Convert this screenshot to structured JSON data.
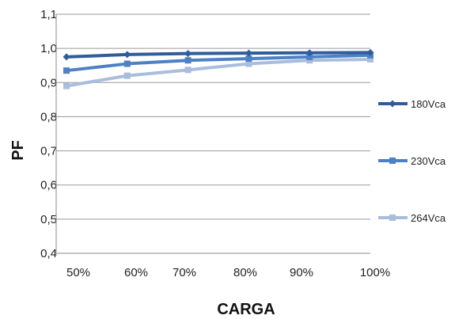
{
  "chart_data": {
    "type": "line",
    "title": "",
    "xlabel": "CARGA",
    "ylabel": "PF",
    "categories": [
      "50%",
      "60%",
      "70%",
      "80%",
      "90%",
      "100%"
    ],
    "ylim": [
      0.4,
      1.1
    ],
    "yticks": [
      0.4,
      0.5,
      0.6,
      0.7,
      0.8,
      0.9,
      1.0,
      1.1
    ],
    "ytick_labels": [
      "0,4",
      "0,5",
      "0,6",
      "0,7",
      "0,8",
      "0,9",
      "1,0",
      "1,1"
    ],
    "grid": true,
    "legend_placement": "right",
    "series": [
      {
        "name": "180Vca",
        "color": "#2F5C9A",
        "marker": "diamond",
        "values": [
          0.975,
          0.982,
          0.985,
          0.986,
          0.987,
          0.988
        ]
      },
      {
        "name": "230Vca",
        "color": "#4E80C4",
        "marker": "square",
        "values": [
          0.935,
          0.955,
          0.965,
          0.97,
          0.975,
          0.98
        ]
      },
      {
        "name": "264Vca",
        "color": "#A9BDDC",
        "marker": "square",
        "values": [
          0.89,
          0.92,
          0.937,
          0.955,
          0.965,
          0.968
        ]
      }
    ]
  }
}
